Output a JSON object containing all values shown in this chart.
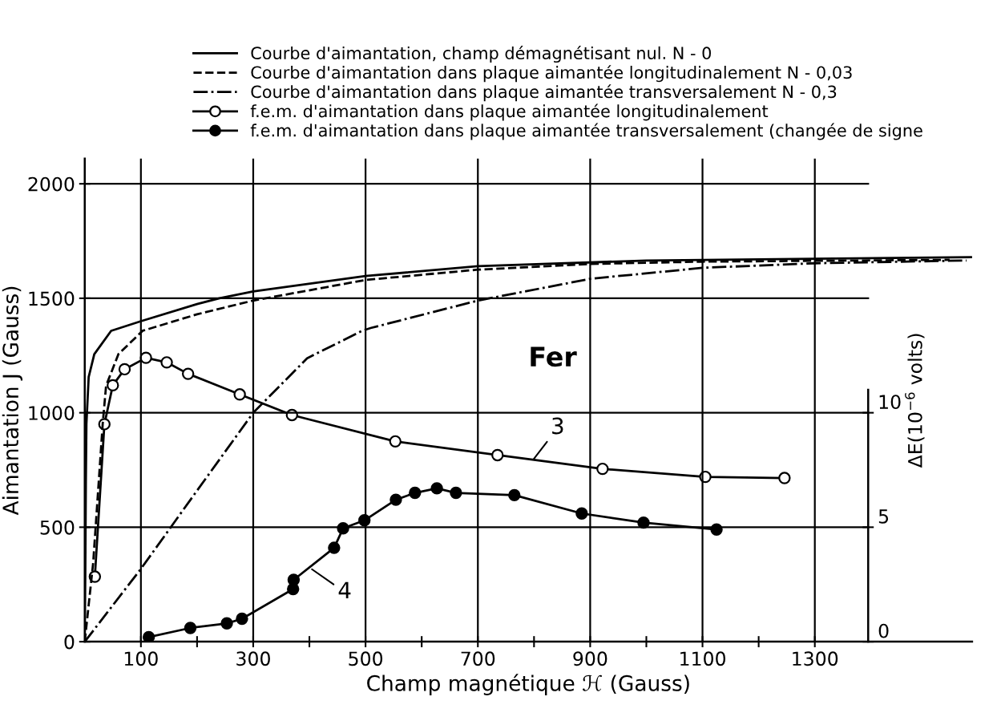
{
  "chart_data": {
    "type": "line",
    "xlabel": "Champ magnétique ℋ (Gauss)",
    "ylabel": "Aimantation J (Gauss)",
    "y2label": "ΔE(10$^{−6}$ volts)",
    "xlim": [
      0,
      1580
    ],
    "ylim": [
      0,
      2110
    ],
    "y2lim": [
      0,
      21.1
    ],
    "xticks": [
      100,
      {
        "value": 200,
        "label": null
      },
      300,
      {
        "value": 400,
        "label": null
      },
      500,
      {
        "value": 600,
        "label": null
      },
      700,
      {
        "value": 800,
        "label": null
      },
      900,
      {
        "value": 1000,
        "label": null
      },
      1100,
      {
        "value": 1200,
        "label": null
      },
      1300
    ],
    "yticks": [
      0,
      500,
      1000,
      1500,
      2000
    ],
    "y2ticks": [
      0,
      5,
      10
    ],
    "grid": true,
    "legend": "top",
    "marker": "none",
    "series": [
      {
        "name": "Courbe d'aimantation, champ démagnétisant nul. N - 0",
        "color": "#000000",
        "line_style": "solid",
        "x": [
          0,
          1,
          2,
          3,
          7,
          17,
          47,
          100,
          200,
          240,
          300,
          500,
          700,
          1000,
          1580
        ],
        "values": [
          0,
          300,
          700,
          952,
          1156,
          1256,
          1358,
          1400,
          1475,
          1500,
          1530,
          1597,
          1640,
          1665,
          1680
        ]
      },
      {
        "name": "Courbe d'aimantation dans plaque aimantée longitudinalement N - 0,03",
        "color": "#000000",
        "line_style": "dashed",
        "x": [
          0,
          15,
          32,
          38,
          60,
          103,
          200,
          300,
          500,
          700,
          900,
          1100,
          1540
        ],
        "values": [
          0,
          344,
          952,
          1118,
          1256,
          1358,
          1430,
          1490,
          1580,
          1625,
          1650,
          1660,
          1668
        ]
      },
      {
        "name": "Courbe d'aimantation dans plaque aimantée transversalement N - 0,3",
        "color": "#000000",
        "line_style": "dashdot",
        "x": [
          0,
          100,
          200,
          300,
          396,
          494,
          509,
          700,
          900,
          1100,
          1300,
          1570
        ],
        "values": [
          0,
          318,
          660,
          1000,
          1238,
          1358,
          1370,
          1490,
          1585,
          1633,
          1653,
          1665
        ]
      },
      {
        "name": "f.e.m. d'aimantation dans plaque aimantée longitudinalement",
        "color": "#000000",
        "axis": "y2",
        "marker": "circle",
        "colors": [
          "#ffffff",
          "#ffffff",
          "#ffffff",
          "#ffffff",
          "#ffffff",
          "#ffffff",
          "#ffffff",
          "#ffffff",
          "#ffffff",
          "#ffffff",
          "#ffffff",
          "#ffffff",
          "#ffffff",
          "#ffffff"
        ],
        "line_style": "solid",
        "x": [
          18,
          35,
          50,
          71,
          109,
          146,
          184,
          276,
          369,
          553,
          735,
          922,
          1105,
          1246
        ],
        "values": [
          2.84,
          9.5,
          11.2,
          11.9,
          12.4,
          12.2,
          11.7,
          10.8,
          9.9,
          8.75,
          8.15,
          7.55,
          7.2,
          7.15
        ]
      },
      {
        "name": "f.e.m. d'aimantation dans plaque aimantée transversalement (changée de signe",
        "color": "#000000",
        "axis": "y2",
        "marker": "circle",
        "line_style": "solid",
        "x": [
          114,
          188,
          253,
          280,
          371,
          372,
          444,
          460,
          498,
          554,
          588,
          627,
          661,
          765,
          885,
          995,
          1125
        ],
        "values": [
          0.2,
          0.6,
          0.8,
          1.0,
          2.3,
          2.7,
          4.1,
          4.95,
          5.3,
          6.2,
          6.5,
          6.7,
          6.5,
          6.4,
          5.6,
          5.2,
          4.9
        ]
      }
    ],
    "annotations": [
      "Fer",
      "3",
      "4"
    ]
  }
}
